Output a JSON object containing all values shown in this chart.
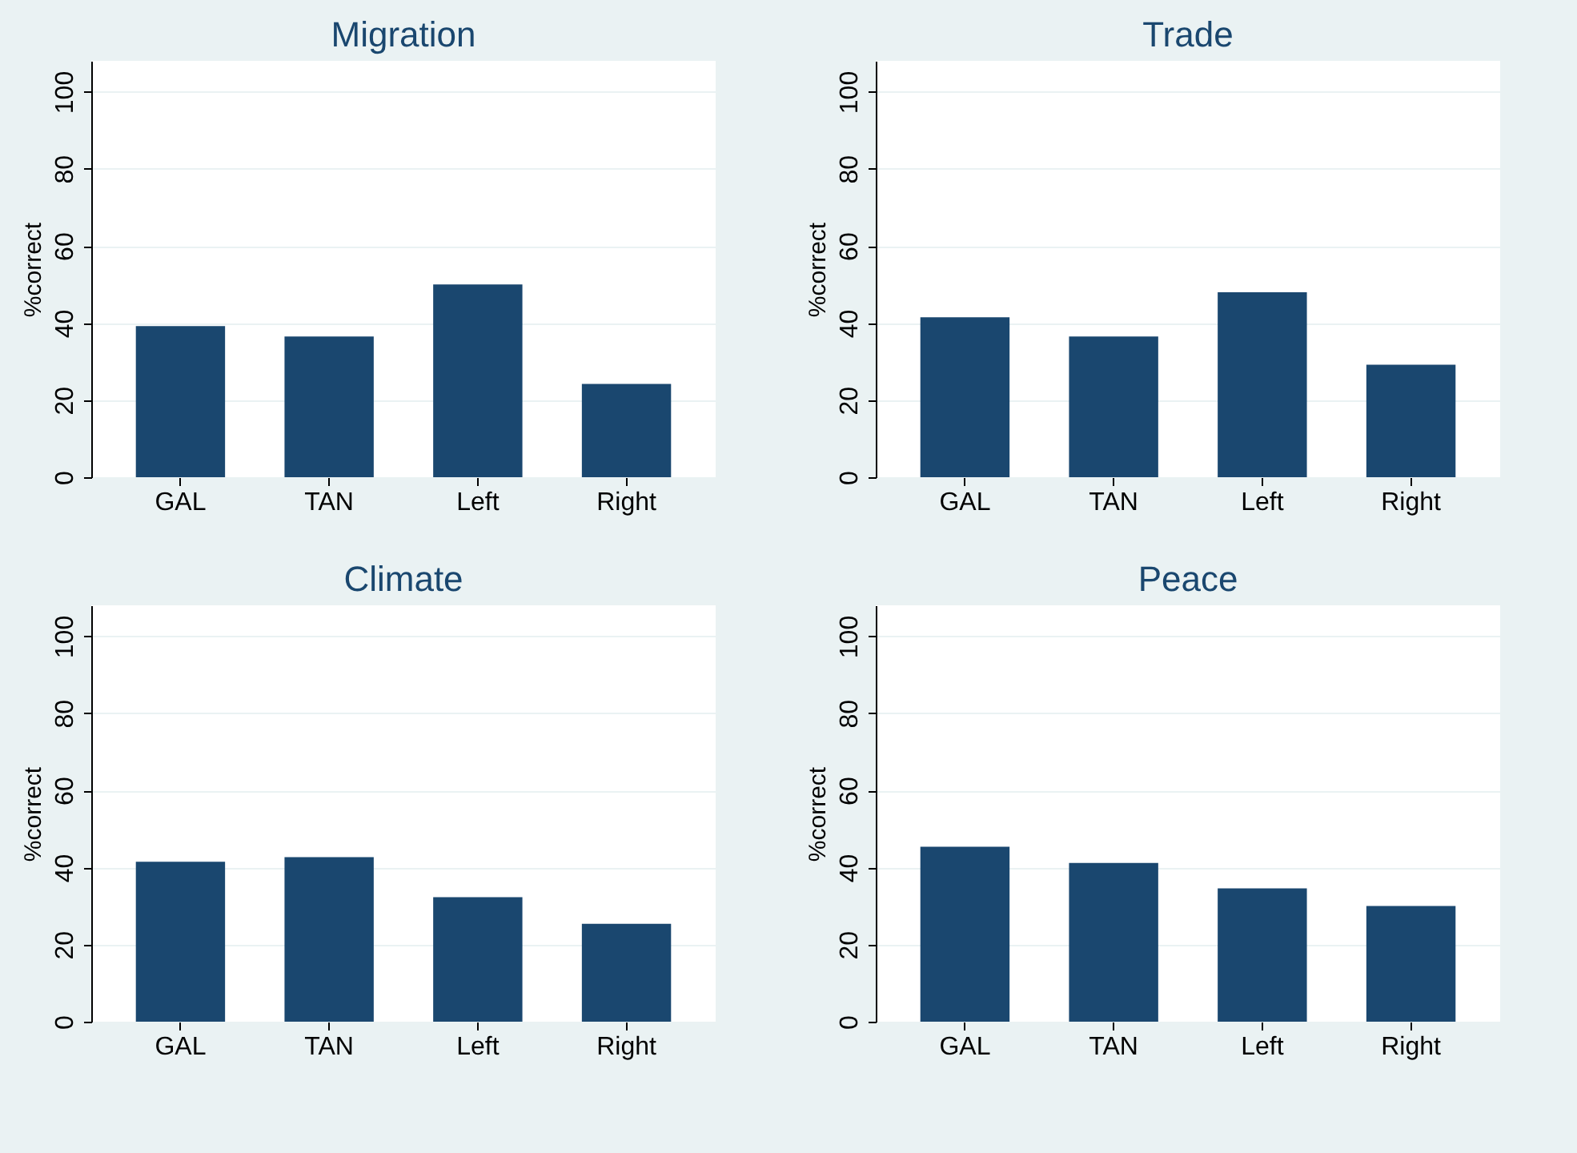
{
  "chart_data": [
    {
      "type": "bar",
      "title": "Migration",
      "ylabel": "%correct",
      "categories": [
        "GAL",
        "TAN",
        "Left",
        "Right"
      ],
      "values": [
        39.2,
        36.5,
        50,
        24.2
      ],
      "color": "#1a476f",
      "ylim": [
        0,
        108
      ],
      "yticks": [
        0,
        20,
        40,
        60,
        80,
        100
      ],
      "grid": "y"
    },
    {
      "type": "bar",
      "title": "Trade",
      "ylabel": "%correct",
      "categories": [
        "GAL",
        "TAN",
        "Left",
        "Right"
      ],
      "values": [
        41.5,
        36.5,
        48,
        29.2
      ],
      "color": "#1a476f",
      "ylim": [
        0,
        108
      ],
      "yticks": [
        0,
        20,
        40,
        60,
        80,
        100
      ],
      "grid": "y"
    },
    {
      "type": "bar",
      "title": "Climate",
      "ylabel": "%correct",
      "categories": [
        "GAL",
        "TAN",
        "Left",
        "Right"
      ],
      "values": [
        41.5,
        42.7,
        32.3,
        25.4
      ],
      "color": "#1a476f",
      "ylim": [
        0,
        108
      ],
      "yticks": [
        0,
        20,
        40,
        60,
        80,
        100
      ],
      "grid": "y"
    },
    {
      "type": "bar",
      "title": "Peace",
      "ylabel": "%correct",
      "categories": [
        "GAL",
        "TAN",
        "Left",
        "Right"
      ],
      "values": [
        45.4,
        41.2,
        34.6,
        30
      ],
      "color": "#1a476f",
      "ylim": [
        0,
        108
      ],
      "yticks": [
        0,
        20,
        40,
        60,
        80,
        100
      ],
      "grid": "y"
    }
  ]
}
